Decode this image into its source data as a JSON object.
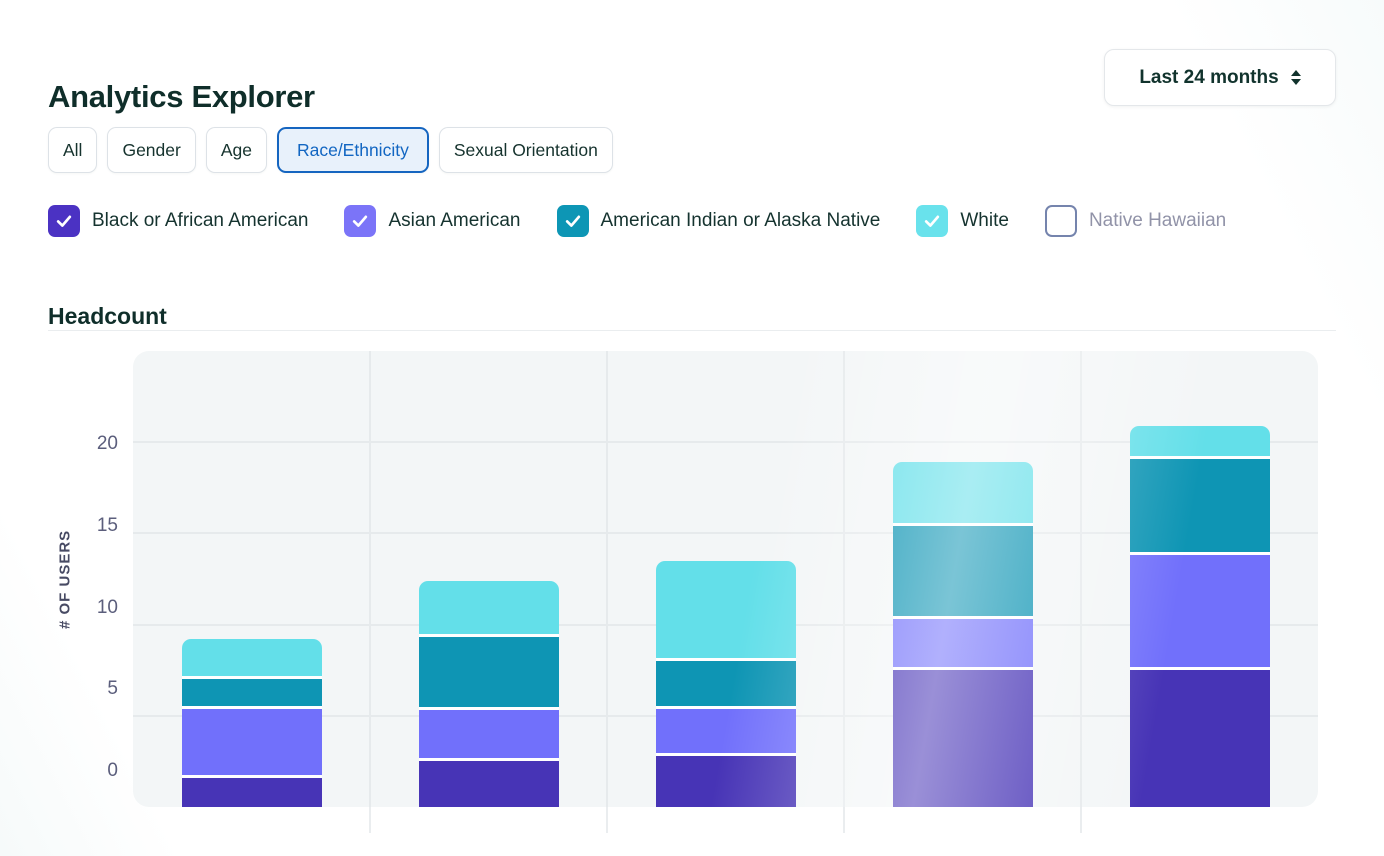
{
  "header": {
    "title": "Analytics Explorer",
    "range_selector": {
      "value": "Last 24 months",
      "icon": "sort-arrows-icon"
    }
  },
  "tabs": [
    {
      "label": "All",
      "active": false
    },
    {
      "label": "Gender",
      "active": false
    },
    {
      "label": "Age",
      "active": false
    },
    {
      "label": "Race/Ethnicity",
      "active": true
    },
    {
      "label": "Sexual Orientation",
      "active": false
    }
  ],
  "filters": [
    {
      "label": "Black or African American",
      "color": "#4b32c3",
      "checked": true
    },
    {
      "label": "Asian American",
      "color": "#7b74f8",
      "checked": true
    },
    {
      "label": "American Indian or Alaska Native",
      "color": "#0d96b5",
      "checked": true
    },
    {
      "label": "White",
      "color": "#69e2ec",
      "checked": true
    },
    {
      "label": "Native Hawaiian",
      "color": null,
      "checked": false
    }
  ],
  "section": {
    "title": "Headcount"
  },
  "chart_data": {
    "type": "bar",
    "stacked": true,
    "title": "Headcount",
    "xlabel": "",
    "ylabel": "# OF USERS",
    "yticks": [
      0,
      5,
      10,
      15,
      20
    ],
    "ylim": [
      0,
      25
    ],
    "grid": true,
    "groups": 5,
    "series": [
      {
        "name": "Black or African American",
        "color": "#4734b6",
        "values": [
          1.6,
          2.5,
          2.8,
          7.5,
          7.5
        ]
      },
      {
        "name": "Asian American",
        "color": "#7170fb",
        "values": [
          3.8,
          2.8,
          2.6,
          2.8,
          6.3
        ]
      },
      {
        "name": "American Indian or Alaska Native",
        "color": "#0e95b4",
        "values": [
          1.6,
          4.0,
          2.6,
          5.1,
          5.3
        ]
      },
      {
        "name": "White",
        "color": "#63dfe9",
        "values": [
          2.2,
          3.1,
          5.5,
          3.5,
          1.8
        ]
      }
    ],
    "legend_position": "top-as-checkbox-filters"
  },
  "colors": {
    "active_tab_border": "#1565c0",
    "active_tab_bg": "#e8f1fb",
    "active_tab_text": "#1266c2",
    "unchecked_border": "#7584ad",
    "unchecked_label": "#9193a8",
    "panel_bg": "#f3f6f7",
    "gridline": "#e6eaec"
  }
}
